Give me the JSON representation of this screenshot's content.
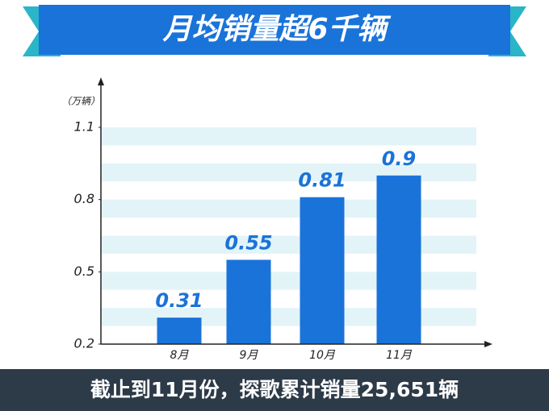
{
  "chart_data": {
    "type": "bar",
    "title": "月均销量超6千辆",
    "y_unit": "（万辆）",
    "categories": [
      "8月",
      "9月",
      "10月",
      "11月"
    ],
    "values": [
      0.31,
      0.55,
      0.81,
      0.9
    ],
    "color": "#1a73d9",
    "ylim": [
      0.2,
      1.1
    ],
    "yticks": [
      0.2,
      0.5,
      0.8,
      1.1
    ],
    "grid": true,
    "annotation": "截止到11月份，探歌累计销量25,651辆"
  }
}
